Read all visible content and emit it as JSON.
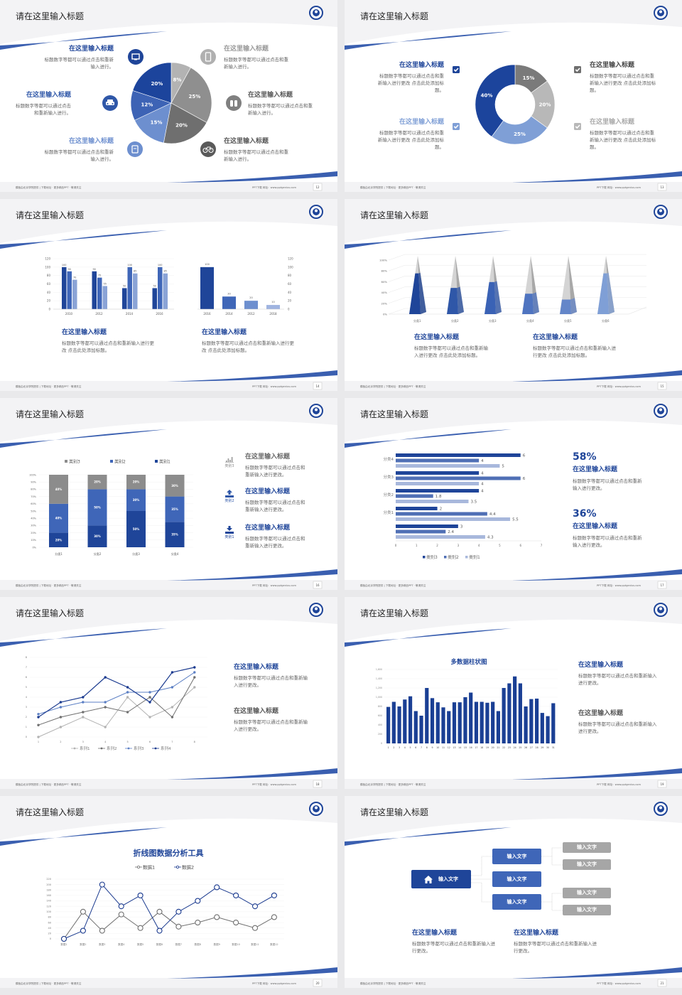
{
  "common": {
    "slide_title": "请在这里输入标题",
    "footer_left": "模板由北京学院提供 | 下载地址 · 更多精品PPT · 敬请关注",
    "footer_right": "PPT下载  网址：www.pptgenius.com"
  },
  "colors": {
    "navy": "#1f4599",
    "blue": "#3f66b8",
    "light_blue": "#7f9fd6",
    "gray": "#8c8c8c",
    "light_gray": "#b5b5b5",
    "dark_gray": "#707070"
  },
  "slides": [
    {
      "page": "12",
      "type": "pie",
      "chart_data": {
        "type": "pie",
        "labels": [
          "8%",
          "25%",
          "20%",
          "15%",
          "12%",
          "20%"
        ],
        "values": [
          8,
          25,
          20,
          15,
          12,
          20
        ],
        "colors": [
          "#b3b3b3",
          "#8f8f8f",
          "#6f6f6f",
          "#6d8fcf",
          "#3d63b5",
          "#1c449c"
        ]
      },
      "items": [
        {
          "title": "在这里输入标题",
          "body": "标题数字等都可以通过点击和重新输入进行。",
          "icon": "monitor-icon",
          "color": "#1f4599"
        },
        {
          "title": "在这里输入标题",
          "body": "标题数字等都可以通过点击和重新输入进行。",
          "icon": "car-icon",
          "color": "#2f57a8"
        },
        {
          "title": "在这里输入标题",
          "body": "标题数字等都可以通过点击和重新输入进行。",
          "icon": "book-icon",
          "color": "#6d8fcf"
        },
        {
          "title": "在这里输入标题",
          "body": "标题数字等都可以通过点击和重新输入进行。",
          "icon": "phone-icon",
          "color": "#b0b0b0"
        },
        {
          "title": "在这里输入标题",
          "body": "标题数字等都可以通过点击和重新输入进行。",
          "icon": "binoculars-icon",
          "color": "#808080"
        },
        {
          "title": "在这里输入标题",
          "body": "标题数字等都可以通过点击和重新输入进行。",
          "icon": "bicycle-icon",
          "color": "#5a5a5a"
        }
      ]
    },
    {
      "page": "13",
      "type": "donut",
      "chart_data": {
        "type": "pie",
        "labels": [
          "15%",
          "20%",
          "25%",
          "40%"
        ],
        "values": [
          15,
          20,
          25,
          40
        ],
        "colors": [
          "#7a7a7a",
          "#b8b8b8",
          "#7f9fd6",
          "#1c449c"
        ]
      },
      "items": [
        {
          "title": "在这里输入标题",
          "body": "标题数字等都可以通过点击和重新输入进行更改 点击此处添加标题。",
          "icon": "checkbox-icon",
          "color": "#1f4599"
        },
        {
          "title": "在这里输入标题",
          "body": "标题数字等都可以通过点击和重新输入进行更改 点击此处添加标题。",
          "icon": "checkbox-icon",
          "color": "#7f9fd6"
        },
        {
          "title": "在这里输入标题",
          "body": "标题数字等都可以通过点击和重新输入进行更改 点击此处添加标题。",
          "icon": "checkbox-icon",
          "color": "#6f6f6f"
        },
        {
          "title": "在这里输入标题",
          "body": "标题数字等都可以通过点击和重新输入进行更改 点击此处添加标题。",
          "icon": "checkbox-icon",
          "color": "#b8b8b8"
        }
      ]
    },
    {
      "page": "14",
      "type": "bars2",
      "chart_data": [
        {
          "type": "bar",
          "categories": [
            "2010",
            "2012",
            "2014",
            "2016"
          ],
          "series": [
            {
              "values": [
                100,
                90,
                50,
                50
              ]
            },
            {
              "values": [
                90,
                75,
                100,
                100
              ]
            },
            {
              "values": [
                70,
                55,
                85,
                85
              ]
            }
          ],
          "ylim": [
            0,
            120
          ],
          "yticks": [
            "0",
            "20",
            "40",
            "60",
            "80",
            "100",
            "120"
          ]
        },
        {
          "type": "bar",
          "categories": [
            "2016",
            "2014",
            "2012",
            "2018"
          ],
          "values": [
            100,
            30,
            20,
            10
          ],
          "ylim": [
            0,
            120
          ],
          "yticks": [
            "0",
            "20",
            "40",
            "60",
            "80",
            "100",
            "120"
          ]
        }
      ],
      "items": [
        {
          "title": "在这里输入标题",
          "body": "标题数字等都可以通过点击和重新输入进行更改 点击此处添加标题。"
        },
        {
          "title": "在这里输入标题",
          "body": "标题数字等都可以通过点击和重新输入进行更改 点击此处添加标题。"
        }
      ]
    },
    {
      "page": "15",
      "type": "pyramid",
      "chart_data": {
        "type": "bar",
        "style": "3d-pyramid",
        "categories": [
          "分类1",
          "分类2",
          "分类3",
          "分类4",
          "分类5",
          "分类6"
        ],
        "values": [
          70,
          45,
          55,
          35,
          25,
          70
        ],
        "ylim": [
          0,
          100
        ],
        "yticks": [
          "0%",
          "20%",
          "40%",
          "60%",
          "80%",
          "100%"
        ]
      },
      "items": [
        {
          "title": "在这里输入标题",
          "body": "标题数字等都可以通过点击和重新输入进行更改 点击此处添加标题。"
        },
        {
          "title": "在这里输入标题",
          "body": "标题数字等都可以通过点击和重新输入进行更改 点击此处添加标题。"
        }
      ]
    },
    {
      "page": "16",
      "type": "stacked",
      "chart_data": {
        "type": "bar",
        "stacked": true,
        "categories": [
          "分类1",
          "分类2",
          "分类3",
          "分类4"
        ],
        "series": [
          {
            "name": "类别1",
            "values": [
              20,
              30,
              50,
              35
            ],
            "labels": [
              "20%",
              "30%",
              "50%",
              "35%"
            ]
          },
          {
            "name": "类别2",
            "values": [
              40,
              50,
              30,
              35
            ],
            "labels": [
              "40%",
              "50%",
              "30%",
              "35%"
            ]
          },
          {
            "name": "类别3",
            "values": [
              40,
              20,
              20,
              30
            ],
            "labels": [
              "40%",
              "20%",
              "20%",
              "30%"
            ]
          }
        ],
        "ylim": [
          0,
          100
        ],
        "yticks": [
          "0%",
          "10%",
          "20%",
          "30%",
          "40%",
          "50%",
          "60%",
          "70%",
          "80%",
          "90%",
          "100%"
        ],
        "legend": "top"
      },
      "items": [
        {
          "title": "在这里输入标题",
          "body": "标题数字等都可以通过点击和重新输入进行更改。",
          "icon": "bar-chart-icon",
          "label": "类别3",
          "color": "#888888"
        },
        {
          "title": "在这里输入标题",
          "body": "标题数字等都可以通过点击和重新输入进行更改。",
          "icon": "upload-icon",
          "label": "类别2",
          "color": "#2f57a8"
        },
        {
          "title": "在这里输入标题",
          "body": "标题数字等都可以通过点击和重新输入进行更改。",
          "icon": "download-icon",
          "label": "类别1",
          "color": "#1f4599"
        }
      ]
    },
    {
      "page": "17",
      "type": "hbar",
      "chart_data": {
        "type": "bar",
        "orientation": "horizontal",
        "categories": [
          "分类4",
          "分类3",
          "分类2",
          "分类1",
          ""
        ],
        "series": [
          {
            "name": "类别3",
            "values": [
              6,
              4,
              4,
              2,
              3
            ]
          },
          {
            "name": "类别2",
            "values": [
              4,
              6,
              1.8,
              4.4,
              2.4
            ]
          },
          {
            "name": "类别1",
            "values": [
              5,
              4,
              3.5,
              5.5,
              4.3
            ]
          }
        ],
        "xlim": [
          0,
          7
        ],
        "xticks": [
          "0",
          "1",
          "2",
          "3",
          "4",
          "5",
          "6",
          "7"
        ],
        "legend": "bottom"
      },
      "items": [
        {
          "stat": "58%",
          "title": "在这里输入标题",
          "body": "标题数字等都可以通过点击和重新输入进行更改。"
        },
        {
          "stat": "36%",
          "title": "在这里输入标题",
          "body": "标题数字等都可以通过点击和重新输入进行更改。"
        }
      ]
    },
    {
      "page": "18",
      "type": "lines",
      "chart_data": {
        "type": "line",
        "x": [
          "1",
          "2",
          "3",
          "4",
          "5",
          "6",
          "7",
          "8"
        ],
        "series": [
          {
            "name": "系列1",
            "values": [
              0,
              1,
              2,
              1,
              4,
              2,
              3,
              5
            ],
            "color": "#b3b3b3"
          },
          {
            "name": "系列2",
            "values": [
              1.2,
              2,
              2.5,
              3,
              2.5,
              4,
              2,
              6
            ],
            "color": "#6f6f6f"
          },
          {
            "name": "系列3",
            "values": [
              2.3,
              3,
              3.5,
              3.5,
              4.5,
              4.5,
              5,
              6.5
            ],
            "color": "#5b7fc4"
          },
          {
            "name": "系列4",
            "values": [
              2,
              3.5,
              4,
              6,
              5,
              3.5,
              6.5,
              7
            ],
            "color": "#1a3a8f"
          }
        ],
        "ylim": [
          0,
          8
        ],
        "yticks": [
          "0",
          "1",
          "2",
          "3",
          "4",
          "5",
          "6",
          "7",
          "8"
        ],
        "legend": "bottom"
      },
      "items": [
        {
          "title": "在这里输入标题",
          "body": "标题数字等都可以通过点击和重新输入进行更改。",
          "color": "#1f4599"
        },
        {
          "title": "在这里输入标题",
          "body": "标题数字等都可以通过点击和重新输入进行更改。",
          "color": "#555555"
        }
      ]
    },
    {
      "page": "19",
      "type": "manybars",
      "chart_data": {
        "type": "bar",
        "title": "多数据柱状图",
        "categories": [
          "1",
          "2",
          "3",
          "4",
          "5",
          "6",
          "7",
          "8",
          "9",
          "10",
          "11",
          "12",
          "13",
          "14",
          "15",
          "16",
          "17",
          "18",
          "19",
          "20",
          "21",
          "22",
          "23",
          "24",
          "25",
          "26",
          "27",
          "28",
          "29",
          "30",
          "31"
        ],
        "values": [
          790,
          900,
          800,
          950,
          1020,
          700,
          600,
          1200,
          980,
          890,
          780,
          700,
          890,
          890,
          1000,
          1100,
          900,
          900,
          880,
          900,
          700,
          1200,
          1300,
          1450,
          1300,
          800,
          960,
          970,
          660,
          590,
          870
        ],
        "ylim": [
          0,
          1600
        ],
        "yticks": [
          "0",
          "200",
          "400",
          "600",
          "800",
          "1,000",
          "1,200",
          "1,400",
          "1,600"
        ]
      },
      "items": [
        {
          "title": "在这里输入标题",
          "body": "标题数字等都可以通过点击和重新输入进行更改。",
          "color": "#1f4599"
        },
        {
          "title": "在这里输入标题",
          "body": "标题数字等都可以通过点击和重新输入进行更改。",
          "color": "#555555"
        }
      ]
    },
    {
      "page": "20",
      "type": "lines2",
      "chart_data": {
        "type": "line",
        "title": "折线图数据分析工具",
        "x": [
          "数据1",
          "数据2",
          "数据3",
          "数据4",
          "数据5",
          "数据6",
          "数据7",
          "数据8",
          "数据9",
          "数据10",
          "数据11",
          "数据12"
        ],
        "series": [
          {
            "name": "数据1",
            "values": [
              0,
              100,
              30,
              90,
              40,
              100,
              45,
              60,
              80,
              60,
              40,
              80
            ],
            "color": "#6f6f6f"
          },
          {
            "name": "数据2",
            "values": [
              0,
              30,
              200,
              120,
              160,
              30,
              100,
              140,
              190,
              160,
              120,
              160
            ],
            "color": "#1a3a8f"
          }
        ],
        "ylim": [
          0,
          220
        ],
        "yticks": [
          "0",
          "20",
          "40",
          "60",
          "80",
          "100",
          "120",
          "140",
          "160",
          "180",
          "200",
          "220"
        ],
        "legend": "top"
      }
    },
    {
      "page": "21",
      "type": "tree",
      "tree": {
        "root": "输入文字",
        "mid": [
          "输入文字",
          "输入文字",
          "输入文字"
        ],
        "leaves": [
          "输入文字",
          "输入文字",
          "输入文字",
          "输入文字"
        ]
      },
      "items": [
        {
          "title": "在这里输入标题",
          "body": "标题数字等都可以通过点击和重新输入进行更改。"
        },
        {
          "title": "在这里输入标题",
          "body": "标题数字等都可以通过点击和重新输入进行更改。"
        }
      ]
    }
  ]
}
